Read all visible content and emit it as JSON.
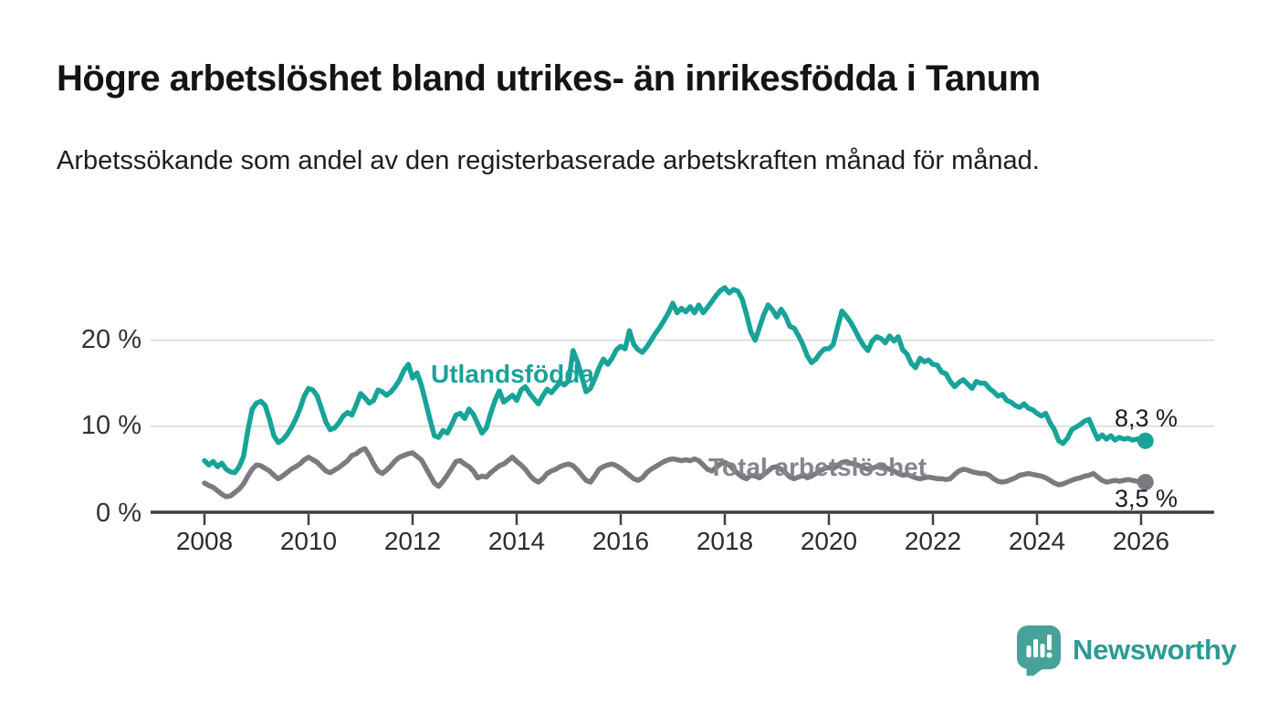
{
  "header": {
    "title": "Högre arbetslöshet bland utrikes- än inrikesfödda i Tanum",
    "subtitle": "Arbetssökande som andel av den registerbaserade arbetskraften månad för månad."
  },
  "branding": {
    "logo_text": "Newsworthy",
    "logo_text_color": "#2c9a94",
    "logo_mark_color": "#47a29a"
  },
  "chart_data": {
    "type": "line",
    "title": "",
    "xlabel": "",
    "ylabel": "",
    "x_start": "2008-01",
    "points_per_year": 12,
    "x_tick_years": [
      2008,
      2010,
      2012,
      2014,
      2016,
      2018,
      2020,
      2022,
      2024,
      2026
    ],
    "y_ticks": [
      {
        "value": 0,
        "label": "0 %"
      },
      {
        "value": 10,
        "label": "10 %"
      },
      {
        "value": 20,
        "label": "20 %"
      }
    ],
    "ylim": [
      0,
      27
    ],
    "grid": "horizontal",
    "legend_position": "inline-labels",
    "series": [
      {
        "name": "Utlandsfödda",
        "color": "#18a398",
        "end_label": "8,3 %",
        "values": [
          6.0,
          5.5,
          5.9,
          5.3,
          5.7,
          5.0,
          4.7,
          4.6,
          5.3,
          6.5,
          9.5,
          12.0,
          12.7,
          12.9,
          12.4,
          10.8,
          8.9,
          8.1,
          8.4,
          9.0,
          9.8,
          10.8,
          12.0,
          13.5,
          14.4,
          14.2,
          13.5,
          12.0,
          10.5,
          9.6,
          9.8,
          10.4,
          11.2,
          11.6,
          11.3,
          12.5,
          13.8,
          13.3,
          12.7,
          13.0,
          14.2,
          14.0,
          13.6,
          14.0,
          14.6,
          15.4,
          16.5,
          17.2,
          15.6,
          16.2,
          14.8,
          12.8,
          10.8,
          8.9,
          8.7,
          9.5,
          9.2,
          10.2,
          11.3,
          11.5,
          10.9,
          12.0,
          11.4,
          10.3,
          9.2,
          9.8,
          11.5,
          13.0,
          14.1,
          12.8,
          13.2,
          13.6,
          13.0,
          14.2,
          14.6,
          13.8,
          13.2,
          12.6,
          13.5,
          14.3,
          13.9,
          14.5,
          15.1,
          14.8,
          15.3,
          18.8,
          17.5,
          15.8,
          14.0,
          14.4,
          15.5,
          16.8,
          17.8,
          17.2,
          17.9,
          18.9,
          19.3,
          19.0,
          21.1,
          19.5,
          18.9,
          18.6,
          19.2,
          20.0,
          20.8,
          21.5,
          22.3,
          23.2,
          24.3,
          23.2,
          23.7,
          23.3,
          23.9,
          23.2,
          24.1,
          23.2,
          23.8,
          24.5,
          25.2,
          25.8,
          26.1,
          25.5,
          25.9,
          25.7,
          24.8,
          23.0,
          21.0,
          20.0,
          21.5,
          23.0,
          24.1,
          23.5,
          22.7,
          23.6,
          22.8,
          21.6,
          21.4,
          20.5,
          19.5,
          18.2,
          17.4,
          17.8,
          18.5,
          19.0,
          19.0,
          19.5,
          21.5,
          23.4,
          22.8,
          22.1,
          21.2,
          20.2,
          19.4,
          18.8,
          19.9,
          20.4,
          20.2,
          19.7,
          20.5,
          19.9,
          20.4,
          18.9,
          18.4,
          17.3,
          16.8,
          17.9,
          17.5,
          17.7,
          17.2,
          17.1,
          16.3,
          16.1,
          15.2,
          14.6,
          15.1,
          15.4,
          14.9,
          14.4,
          15.2,
          15.0,
          15.0,
          14.4,
          14.0,
          13.5,
          13.7,
          13.0,
          12.8,
          12.4,
          12.2,
          12.6,
          12.1,
          11.9,
          11.5,
          11.2,
          11.5,
          10.4,
          9.6,
          8.3,
          8.0,
          8.6,
          9.6,
          9.9,
          10.2,
          10.6,
          10.8,
          9.6,
          8.5,
          9.0,
          8.5,
          8.9,
          8.4,
          8.7,
          8.5,
          8.6,
          8.4,
          8.5,
          8.5,
          8.3
        ]
      },
      {
        "name": "Total arbetslöshet",
        "color": "#7c7a80",
        "end_label": "3,5 %",
        "values": [
          3.4,
          3.1,
          2.9,
          2.5,
          2.1,
          1.8,
          1.9,
          2.3,
          2.7,
          3.3,
          4.2,
          5.0,
          5.5,
          5.4,
          5.1,
          4.8,
          4.3,
          3.9,
          4.2,
          4.6,
          5.0,
          5.3,
          5.6,
          6.1,
          6.4,
          6.1,
          5.8,
          5.3,
          4.8,
          4.6,
          4.9,
          5.2,
          5.6,
          6.0,
          6.6,
          6.8,
          7.2,
          7.4,
          6.6,
          5.6,
          4.8,
          4.5,
          4.9,
          5.4,
          6.0,
          6.4,
          6.6,
          6.8,
          6.9,
          6.5,
          6.1,
          5.2,
          4.3,
          3.4,
          3.0,
          3.6,
          4.3,
          5.1,
          5.9,
          6.0,
          5.6,
          5.3,
          4.8,
          4.0,
          4.2,
          4.1,
          4.6,
          5.0,
          5.4,
          5.6,
          6.0,
          6.4,
          5.9,
          5.5,
          5.0,
          4.3,
          3.8,
          3.5,
          3.9,
          4.5,
          4.8,
          5.0,
          5.3,
          5.5,
          5.6,
          5.4,
          4.9,
          4.3,
          3.7,
          3.5,
          4.2,
          5.0,
          5.3,
          5.5,
          5.6,
          5.4,
          5.1,
          4.7,
          4.3,
          3.9,
          3.7,
          4.0,
          4.6,
          5.0,
          5.3,
          5.6,
          5.9,
          6.1,
          6.2,
          6.1,
          6.0,
          6.1,
          6.0,
          6.2,
          6.0,
          5.5,
          5.0,
          4.8,
          5.2,
          5.6,
          5.8,
          5.5,
          5.0,
          4.5,
          4.1,
          3.9,
          4.3,
          4.2,
          4.0,
          4.4,
          4.8,
          5.2,
          5.3,
          5.0,
          4.6,
          4.1,
          3.9,
          4.1,
          4.3,
          4.0,
          4.2,
          4.5,
          4.8,
          5.1,
          5.2,
          5.1,
          5.4,
          5.8,
          5.9,
          5.7,
          5.6,
          5.4,
          5.2,
          5.0,
          5.1,
          5.3,
          5.4,
          5.2,
          5.0,
          4.8,
          4.5,
          4.3,
          4.4,
          4.2,
          4.0,
          3.9,
          4.0,
          4.1,
          4.0,
          3.9,
          3.9,
          3.8,
          3.9,
          4.4,
          4.8,
          5.0,
          4.9,
          4.7,
          4.6,
          4.5,
          4.5,
          4.3,
          3.9,
          3.6,
          3.5,
          3.6,
          3.8,
          4.0,
          4.3,
          4.4,
          4.5,
          4.4,
          4.3,
          4.2,
          4.0,
          3.7,
          3.4,
          3.2,
          3.3,
          3.5,
          3.7,
          3.9,
          4.0,
          4.2,
          4.3,
          4.5,
          4.1,
          3.7,
          3.5,
          3.6,
          3.7,
          3.6,
          3.7,
          3.8,
          3.7,
          3.6,
          3.6,
          3.5
        ]
      }
    ]
  }
}
